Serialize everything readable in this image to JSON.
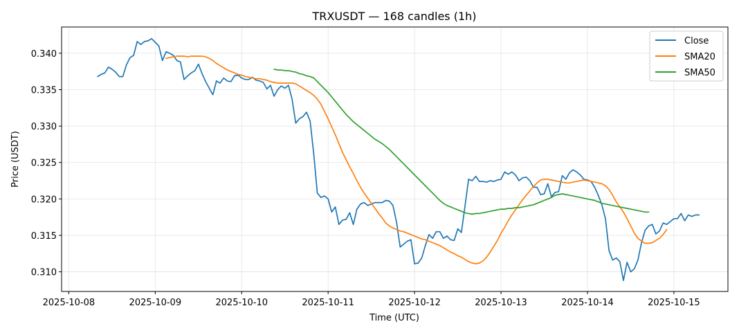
{
  "chart_data": {
    "type": "line",
    "title": "TRXUSDT — 168 candles (1h)",
    "xlabel": "Time (UTC)",
    "ylabel": "Price (USDT)",
    "x_tick_labels": [
      "2025-10-08",
      "2025-10-09",
      "2025-10-10",
      "2025-10-11",
      "2025-10-12",
      "2025-10-13",
      "2025-10-14",
      "2025-10-15"
    ],
    "y_tick_labels": [
      "0.310",
      "0.315",
      "0.320",
      "0.325",
      "0.330",
      "0.335",
      "0.340"
    ],
    "y_ticks": [
      0.31,
      0.315,
      0.32,
      0.325,
      0.33,
      0.335,
      0.34
    ],
    "xlim": [
      "2025-10-07T22:00",
      "2025-10-15T15:00"
    ],
    "ylim": [
      0.3073,
      0.3436
    ],
    "grid": true,
    "legend_position": "top-right",
    "x_start": "2025-10-08T08:00",
    "x_step_hours": 1,
    "series": [
      {
        "name": "Close",
        "color": "#1f77b4",
        "values": [
          0.3368,
          0.3371,
          0.3373,
          0.3381,
          0.3378,
          0.3374,
          0.3368,
          0.3368,
          0.3384,
          0.3394,
          0.3397,
          0.3416,
          0.3412,
          0.3416,
          0.3417,
          0.342,
          0.3415,
          0.341,
          0.339,
          0.3402,
          0.34,
          0.3397,
          0.339,
          0.3388,
          0.3364,
          0.3369,
          0.3373,
          0.3376,
          0.3385,
          0.3372,
          0.3361,
          0.3352,
          0.3343,
          0.3362,
          0.3359,
          0.3366,
          0.3362,
          0.3361,
          0.3369,
          0.337,
          0.3366,
          0.3364,
          0.3364,
          0.3367,
          0.3363,
          0.3362,
          0.336,
          0.3351,
          0.3356,
          0.3341,
          0.335,
          0.3355,
          0.3352,
          0.3356,
          0.3337,
          0.3304,
          0.331,
          0.3313,
          0.3319,
          0.3307,
          0.3262,
          0.3208,
          0.3202,
          0.3204,
          0.32,
          0.3182,
          0.3189,
          0.3165,
          0.3171,
          0.3172,
          0.3181,
          0.3165,
          0.3186,
          0.3193,
          0.3195,
          0.3191,
          0.3193,
          0.3195,
          0.3195,
          0.3195,
          0.3198,
          0.3197,
          0.3191,
          0.3168,
          0.3134,
          0.3138,
          0.3142,
          0.3144,
          0.3111,
          0.3112,
          0.3119,
          0.3136,
          0.3151,
          0.3146,
          0.3155,
          0.3155,
          0.3146,
          0.3149,
          0.3144,
          0.3143,
          0.3159,
          0.3154,
          0.319,
          0.3227,
          0.3225,
          0.3231,
          0.3224,
          0.3224,
          0.3223,
          0.3225,
          0.3224,
          0.3226,
          0.3227,
          0.3237,
          0.3234,
          0.3237,
          0.3233,
          0.3225,
          0.3229,
          0.323,
          0.3225,
          0.3216,
          0.3216,
          0.3206,
          0.3207,
          0.3221,
          0.3203,
          0.3209,
          0.321,
          0.3232,
          0.3227,
          0.3236,
          0.324,
          0.3237,
          0.3233,
          0.3227,
          0.3226,
          0.3224,
          0.3216,
          0.3205,
          0.3192,
          0.3173,
          0.3129,
          0.3116,
          0.3119,
          0.3114,
          0.3088,
          0.3113,
          0.31,
          0.3104,
          0.3116,
          0.314,
          0.3157,
          0.3163,
          0.3165,
          0.3152,
          0.3156,
          0.3167,
          0.3165,
          0.3169,
          0.3173,
          0.3173,
          0.318,
          0.317,
          0.3178,
          0.3176,
          0.3178,
          0.3178
        ]
      },
      {
        "name": "SMA20",
        "color": "#ff7f0e",
        "start_index": 19,
        "values": [
          0.3393,
          0.3394,
          0.3395,
          0.3396,
          0.3396,
          0.3396,
          0.3395,
          0.3396,
          0.3396,
          0.3396,
          0.3396,
          0.3395,
          0.3393,
          0.339,
          0.3386,
          0.3383,
          0.338,
          0.3377,
          0.3375,
          0.3373,
          0.3371,
          0.337,
          0.3368,
          0.3367,
          0.3366,
          0.3365,
          0.3365,
          0.3364,
          0.3363,
          0.3361,
          0.336,
          0.3359,
          0.3359,
          0.3359,
          0.3359,
          0.3359,
          0.3358,
          0.3355,
          0.3352,
          0.3349,
          0.3346,
          0.3342,
          0.3337,
          0.333,
          0.332,
          0.331,
          0.3299,
          0.3288,
          0.3276,
          0.3264,
          0.3254,
          0.3244,
          0.3235,
          0.3225,
          0.3216,
          0.3208,
          0.3201,
          0.3194,
          0.3187,
          0.318,
          0.3174,
          0.3167,
          0.3163,
          0.316,
          0.3158,
          0.3156,
          0.3155,
          0.3153,
          0.3151,
          0.3149,
          0.3147,
          0.3145,
          0.3144,
          0.3142,
          0.314,
          0.3138,
          0.3136,
          0.3133,
          0.313,
          0.3127,
          0.3125,
          0.3122,
          0.312,
          0.3117,
          0.3114,
          0.3112,
          0.3111,
          0.3112,
          0.3115,
          0.312,
          0.3127,
          0.3135,
          0.3143,
          0.3153,
          0.3161,
          0.317,
          0.3178,
          0.3185,
          0.3192,
          0.3199,
          0.3205,
          0.3211,
          0.3217,
          0.3222,
          0.3226,
          0.3227,
          0.3227,
          0.3226,
          0.3225,
          0.3224,
          0.3223,
          0.3222,
          0.3222,
          0.3223,
          0.3224,
          0.3225,
          0.3226,
          0.3225,
          0.3224,
          0.3223,
          0.3222,
          0.3221,
          0.3218,
          0.3213,
          0.3205,
          0.3196,
          0.3189,
          0.3182,
          0.3173,
          0.3163,
          0.3153,
          0.3146,
          0.3142,
          0.3139,
          0.3139,
          0.314,
          0.3143,
          0.3146,
          0.3151,
          0.3158
        ]
      },
      {
        "name": "SMA50",
        "color": "#2ca02c",
        "start_index": 49,
        "values": [
          0.3378,
          0.3377,
          0.3377,
          0.3376,
          0.3376,
          0.3375,
          0.3374,
          0.3372,
          0.3371,
          0.3369,
          0.3368,
          0.3366,
          0.3361,
          0.3356,
          0.3351,
          0.3346,
          0.334,
          0.3334,
          0.3328,
          0.3322,
          0.3316,
          0.3311,
          0.3306,
          0.3302,
          0.3298,
          0.3294,
          0.329,
          0.3286,
          0.3282,
          0.3279,
          0.3276,
          0.3272,
          0.3268,
          0.3263,
          0.3258,
          0.3253,
          0.3248,
          0.3243,
          0.3238,
          0.3233,
          0.3228,
          0.3223,
          0.3218,
          0.3213,
          0.3208,
          0.3203,
          0.3198,
          0.3194,
          0.3191,
          0.3189,
          0.3187,
          0.3185,
          0.3183,
          0.3181,
          0.318,
          0.3179,
          0.318,
          0.318,
          0.3181,
          0.3182,
          0.3183,
          0.3184,
          0.3185,
          0.3186,
          0.3186,
          0.3187,
          0.3187,
          0.3188,
          0.3188,
          0.3189,
          0.319,
          0.3191,
          0.3192,
          0.3194,
          0.3196,
          0.3198,
          0.32,
          0.3202,
          0.3205,
          0.3206,
          0.3207,
          0.3206,
          0.3205,
          0.3204,
          0.3203,
          0.3202,
          0.3201,
          0.32,
          0.3199,
          0.3198,
          0.3196,
          0.3194,
          0.3193,
          0.3192,
          0.3191,
          0.319,
          0.3189,
          0.3188,
          0.3187,
          0.3186,
          0.3185,
          0.3184,
          0.3183,
          0.3182,
          0.3182
        ]
      }
    ]
  }
}
